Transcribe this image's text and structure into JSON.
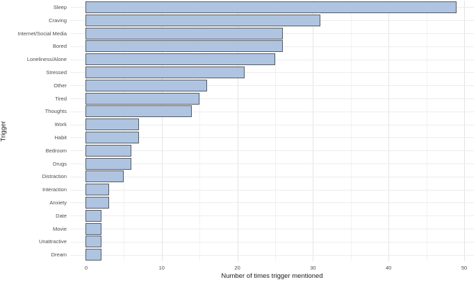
{
  "chart_data": {
    "type": "bar",
    "orientation": "horizontal",
    "title": "",
    "xlabel": "Number of times trigger mentioned",
    "ylabel": "Trigger",
    "categories": [
      "Sleep",
      "Craving",
      "Internet/Social Media",
      "Bored",
      "Loneliness/Alone",
      "Stressed",
      "Other",
      "Tired",
      "Thoughts",
      "Work",
      "Habit",
      "Bedroom",
      "Drugs",
      "Distraction",
      "Interaction",
      "Anxiety",
      "Date",
      "Movie",
      "Unattractive",
      "Dream"
    ],
    "values": [
      49,
      31,
      26,
      26,
      25,
      21,
      16,
      15,
      14,
      7,
      7,
      6,
      6,
      5,
      3,
      3,
      2,
      2,
      2,
      2
    ],
    "x_ticks": [
      0,
      10,
      20,
      30,
      40,
      50
    ],
    "x_minor_ticks": [
      5,
      15,
      25,
      35,
      45
    ],
    "xlim": [
      0,
      51.5
    ],
    "grid": true,
    "legend": false,
    "colors": {
      "bar_fill": "#aec4e1",
      "bar_border": "#56595e",
      "grid_major": "#e4e4e4",
      "grid_minor": "#f2f2f2",
      "row_grid": "#ececec",
      "tick_label": "#4d4d4d",
      "axis_title": "#1a1a1a",
      "background": "#ffffff"
    }
  }
}
